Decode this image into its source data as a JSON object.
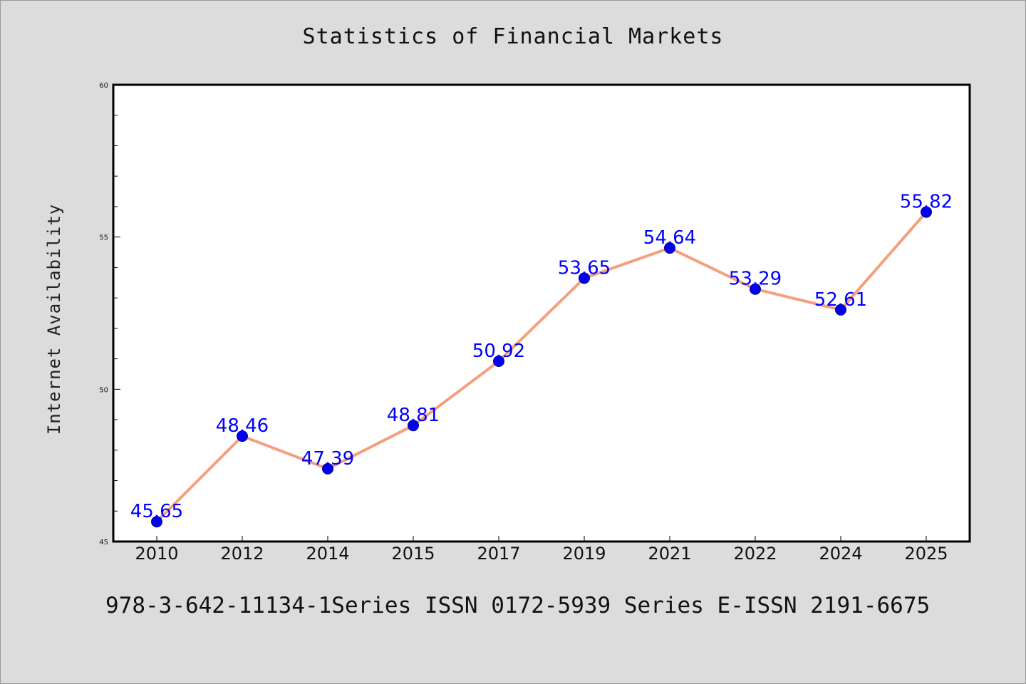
{
  "chart_data": {
    "type": "line",
    "title": "Statistics of Financial Markets",
    "xlabel": "",
    "ylabel": "Internet Availability",
    "categories": [
      "2010",
      "2012",
      "2014",
      "2015",
      "2017",
      "2019",
      "2021",
      "2022",
      "2024",
      "2025"
    ],
    "series": [
      {
        "values": [
          45.65,
          48.46,
          47.39,
          48.81,
          50.92,
          53.65,
          54.64,
          53.29,
          52.61,
          55.82
        ],
        "labels": [
          "45.65",
          "48.46",
          "47.39",
          "48.81",
          "50.92",
          "53.65",
          "54.64",
          "53.29",
          "52.61",
          "55.82"
        ]
      }
    ],
    "ylim": [
      45,
      60
    ],
    "yticks": [
      "45",
      "50",
      "55",
      "60"
    ],
    "grid": false,
    "colors": {
      "line": "#f4a07e",
      "marker": "#0000ee",
      "label": "#0000ff",
      "plot_background": "#ffffff",
      "page_background": "#dcdcdc"
    }
  },
  "footer": {
    "text": "978-3-642-11134-1Series ISSN 0172-5939 Series E-ISSN 2191-6675"
  }
}
